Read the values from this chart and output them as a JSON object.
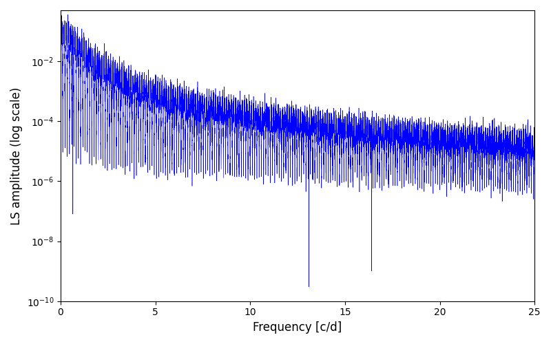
{
  "xlabel": "Frequency [c/d]",
  "ylabel": "LS amplitude (log scale)",
  "xlim": [
    0,
    25
  ],
  "ylim": [
    1e-10,
    0.5
  ],
  "xticks": [
    0,
    5,
    10,
    15,
    20,
    25
  ],
  "line_color": "#0000ff",
  "line_width": 0.4,
  "figsize": [
    8.0,
    5.0
  ],
  "dpi": 100,
  "freq_max": 25.0,
  "n_points": 20000,
  "seed": 7,
  "peak_amp": 0.11,
  "noise_floor_high": 3e-06,
  "background_color": "#ffffff"
}
